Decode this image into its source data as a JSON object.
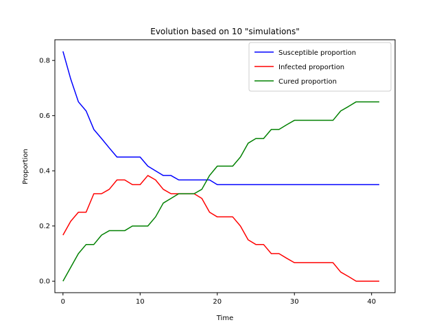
{
  "chart_data": {
    "type": "line",
    "title": "Evolution based on 10 \"simulations\"",
    "xlabel": "Time",
    "ylabel": "Proportion",
    "xlim": [
      -1.05,
      43.05
    ],
    "ylim": [
      -0.04167,
      0.875
    ],
    "xticks": [
      0,
      10,
      20,
      30,
      40
    ],
    "xtick_labels": [
      "0",
      "10",
      "20",
      "30",
      "40"
    ],
    "yticks": [
      0.0,
      0.2,
      0.4,
      0.6,
      0.8
    ],
    "ytick_labels": [
      "0.0",
      "0.2",
      "0.4",
      "0.6",
      "0.8"
    ],
    "grid": false,
    "legend_position": "top-right",
    "x": [
      0,
      1,
      2,
      3,
      4,
      5,
      6,
      7,
      8,
      9,
      10,
      11,
      12,
      13,
      14,
      15,
      16,
      17,
      18,
      19,
      20,
      21,
      22,
      23,
      24,
      25,
      26,
      27,
      28,
      29,
      30,
      31,
      32,
      33,
      34,
      35,
      36,
      37,
      38,
      39,
      40,
      41
    ],
    "series": [
      {
        "name": "Susceptible proportion",
        "color": "#0000ff",
        "values": [
          0.833,
          0.733,
          0.65,
          0.617,
          0.55,
          0.517,
          0.483,
          0.45,
          0.45,
          0.45,
          0.45,
          0.417,
          0.4,
          0.383,
          0.383,
          0.367,
          0.367,
          0.367,
          0.367,
          0.367,
          0.35,
          0.35,
          0.35,
          0.35,
          0.35,
          0.35,
          0.35,
          0.35,
          0.35,
          0.35,
          0.35,
          0.35,
          0.35,
          0.35,
          0.35,
          0.35,
          0.35,
          0.35,
          0.35,
          0.35,
          0.35,
          0.35
        ]
      },
      {
        "name": "Infected proportion",
        "color": "#ff0000",
        "values": [
          0.167,
          0.217,
          0.25,
          0.25,
          0.317,
          0.317,
          0.333,
          0.367,
          0.367,
          0.35,
          0.35,
          0.383,
          0.367,
          0.333,
          0.317,
          0.317,
          0.317,
          0.317,
          0.3,
          0.25,
          0.233,
          0.233,
          0.233,
          0.2,
          0.15,
          0.133,
          0.133,
          0.1,
          0.1,
          0.083,
          0.067,
          0.067,
          0.067,
          0.067,
          0.067,
          0.067,
          0.033,
          0.017,
          0.0,
          0.0,
          0.0,
          0.0
        ]
      },
      {
        "name": "Cured proportion",
        "color": "#008000",
        "values": [
          0.0,
          0.05,
          0.1,
          0.133,
          0.133,
          0.167,
          0.183,
          0.183,
          0.183,
          0.2,
          0.2,
          0.2,
          0.233,
          0.283,
          0.3,
          0.317,
          0.317,
          0.317,
          0.333,
          0.383,
          0.417,
          0.417,
          0.417,
          0.45,
          0.5,
          0.517,
          0.517,
          0.55,
          0.55,
          0.567,
          0.583,
          0.583,
          0.583,
          0.583,
          0.583,
          0.583,
          0.617,
          0.633,
          0.65,
          0.65,
          0.65,
          0.65
        ]
      }
    ]
  }
}
